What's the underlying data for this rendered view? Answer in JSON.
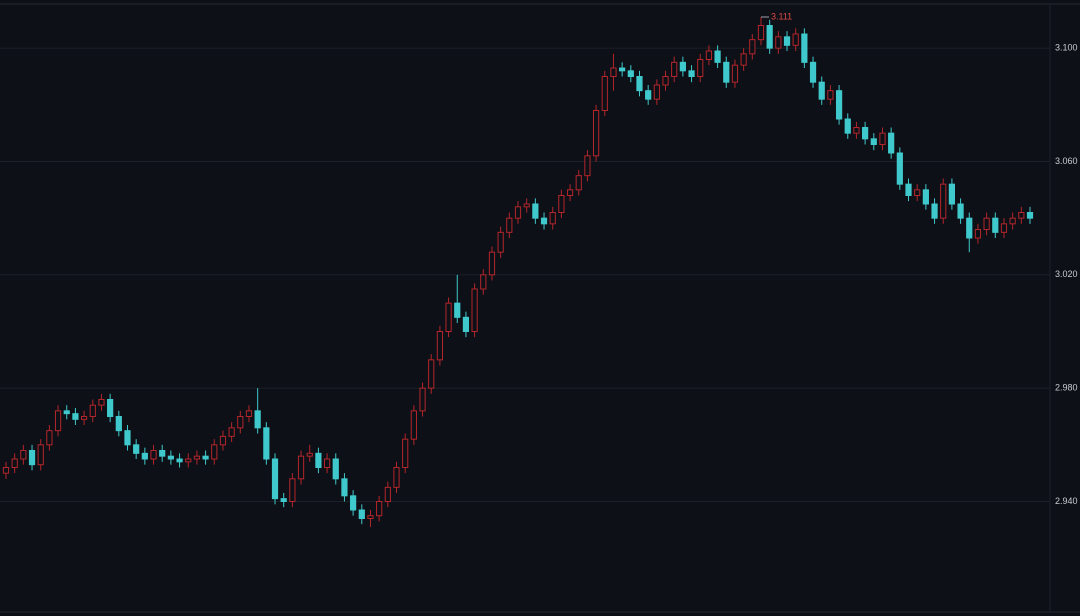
{
  "chart_data": {
    "type": "candlestick",
    "open": [
      2.95,
      2.952,
      2.955,
      2.958,
      2.953,
      2.96,
      2.965,
      2.972,
      2.971,
      2.969,
      2.97,
      2.974,
      2.976,
      2.97,
      2.965,
      2.96,
      2.957,
      2.955,
      2.958,
      2.956,
      2.955,
      2.954,
      2.955,
      2.956,
      2.955,
      2.96,
      2.963,
      2.966,
      2.97,
      2.972,
      2.966,
      2.955,
      2.941,
      2.94,
      2.948,
      2.956,
      2.957,
      2.952,
      2.955,
      2.948,
      2.942,
      2.937,
      2.934,
      2.935,
      2.94,
      2.945,
      2.952,
      2.962,
      2.972,
      2.98,
      2.99,
      3.0,
      3.01,
      3.005,
      3.0,
      3.015,
      3.02,
      3.028,
      3.035,
      3.04,
      3.044,
      3.045,
      3.04,
      3.038,
      3.042,
      3.048,
      3.05,
      3.055,
      3.062,
      3.078,
      3.09,
      3.093,
      3.092,
      3.09,
      3.085,
      3.082,
      3.087,
      3.09,
      3.095,
      3.092,
      3.09,
      3.096,
      3.099,
      3.095,
      3.088,
      3.094,
      3.098,
      3.103,
      3.108,
      3.1,
      3.104,
      3.101,
      3.105,
      3.095,
      3.088,
      3.082,
      3.085,
      3.075,
      3.07,
      3.072,
      3.068,
      3.066,
      3.07,
      3.063,
      3.052,
      3.048,
      3.05,
      3.045,
      3.04,
      3.052,
      3.045,
      3.04,
      3.033,
      3.036,
      3.04,
      3.035,
      3.038,
      3.04,
      3.042
    ],
    "high": [
      2.954,
      2.957,
      2.96,
      2.96,
      2.962,
      2.967,
      2.974,
      2.974,
      2.973,
      2.972,
      2.976,
      2.978,
      2.978,
      2.972,
      2.967,
      2.962,
      2.959,
      2.96,
      2.96,
      2.958,
      2.957,
      2.957,
      2.958,
      2.958,
      2.962,
      2.965,
      2.968,
      2.972,
      2.974,
      2.98,
      2.968,
      2.957,
      2.943,
      2.95,
      2.958,
      2.96,
      2.959,
      2.957,
      2.957,
      2.95,
      2.944,
      2.939,
      2.937,
      2.942,
      2.947,
      2.954,
      2.964,
      2.974,
      2.982,
      2.992,
      3.002,
      3.012,
      3.02,
      3.007,
      3.017,
      3.022,
      3.03,
      3.037,
      3.042,
      3.046,
      3.047,
      3.047,
      3.042,
      3.044,
      3.05,
      3.052,
      3.057,
      3.064,
      3.08,
      3.092,
      3.098,
      3.095,
      3.094,
      3.092,
      3.087,
      3.089,
      3.092,
      3.097,
      3.097,
      3.094,
      3.098,
      3.101,
      3.101,
      3.097,
      3.096,
      3.1,
      3.105,
      3.111,
      3.11,
      3.106,
      3.106,
      3.107,
      3.107,
      3.097,
      3.09,
      3.087,
      3.087,
      3.077,
      3.074,
      3.074,
      3.07,
      3.072,
      3.072,
      3.065,
      3.054,
      3.052,
      3.052,
      3.047,
      3.054,
      3.054,
      3.047,
      3.042,
      3.038,
      3.042,
      3.042,
      3.04,
      3.042,
      3.044,
      3.044
    ],
    "low": [
      2.948,
      2.95,
      2.953,
      2.951,
      2.951,
      2.958,
      2.963,
      2.969,
      2.967,
      2.967,
      2.968,
      2.972,
      2.968,
      2.963,
      2.958,
      2.955,
      2.953,
      2.953,
      2.954,
      2.953,
      2.952,
      2.952,
      2.953,
      2.953,
      2.953,
      2.958,
      2.961,
      2.964,
      2.968,
      2.964,
      2.953,
      2.939,
      2.938,
      2.938,
      2.946,
      2.954,
      2.95,
      2.95,
      2.946,
      2.94,
      2.935,
      2.932,
      2.931,
      2.933,
      2.938,
      2.943,
      2.95,
      2.96,
      2.97,
      2.978,
      2.988,
      2.998,
      3.003,
      2.998,
      2.998,
      3.013,
      3.018,
      3.026,
      3.033,
      3.038,
      3.042,
      3.038,
      3.036,
      3.036,
      3.04,
      3.046,
      3.048,
      3.053,
      3.06,
      3.076,
      3.085,
      3.09,
      3.088,
      3.083,
      3.08,
      3.08,
      3.085,
      3.088,
      3.09,
      3.088,
      3.088,
      3.094,
      3.093,
      3.086,
      3.086,
      3.092,
      3.096,
      3.101,
      3.098,
      3.098,
      3.099,
      3.099,
      3.093,
      3.086,
      3.08,
      3.08,
      3.073,
      3.068,
      3.068,
      3.066,
      3.064,
      3.064,
      3.061,
      3.05,
      3.046,
      3.046,
      3.043,
      3.038,
      3.038,
      3.043,
      3.038,
      3.028,
      3.031,
      3.034,
      3.033,
      3.033,
      3.036,
      3.038,
      3.038
    ],
    "close": [
      2.952,
      2.955,
      2.958,
      2.953,
      2.96,
      2.965,
      2.972,
      2.971,
      2.969,
      2.97,
      2.974,
      2.976,
      2.97,
      2.965,
      2.96,
      2.957,
      2.955,
      2.958,
      2.956,
      2.955,
      2.954,
      2.955,
      2.956,
      2.955,
      2.96,
      2.963,
      2.966,
      2.97,
      2.972,
      2.966,
      2.955,
      2.941,
      2.94,
      2.948,
      2.956,
      2.957,
      2.952,
      2.955,
      2.948,
      2.942,
      2.937,
      2.934,
      2.935,
      2.94,
      2.945,
      2.952,
      2.962,
      2.972,
      2.98,
      2.99,
      3.0,
      3.01,
      3.005,
      3.0,
      3.015,
      3.02,
      3.028,
      3.035,
      3.04,
      3.044,
      3.045,
      3.04,
      3.038,
      3.042,
      3.048,
      3.05,
      3.055,
      3.062,
      3.078,
      3.09,
      3.093,
      3.092,
      3.09,
      3.085,
      3.082,
      3.087,
      3.09,
      3.095,
      3.092,
      3.09,
      3.096,
      3.099,
      3.095,
      3.088,
      3.094,
      3.098,
      3.103,
      3.108,
      3.1,
      3.104,
      3.101,
      3.105,
      3.095,
      3.088,
      3.082,
      3.085,
      3.075,
      3.07,
      3.072,
      3.068,
      3.066,
      3.07,
      3.063,
      3.052,
      3.048,
      3.05,
      3.045,
      3.04,
      3.052,
      3.045,
      3.04,
      3.033,
      3.036,
      3.04,
      3.035,
      3.038,
      3.04,
      3.042,
      3.04
    ],
    "ylim": [
      2.901,
      3.117
    ],
    "yticks": [
      {
        "value": 2.94,
        "label": "2.940"
      },
      {
        "value": 2.98,
        "label": "2.980"
      },
      {
        "value": 3.02,
        "label": "3.020"
      },
      {
        "value": 3.06,
        "label": "3.060"
      },
      {
        "value": 3.1,
        "label": "3.100"
      }
    ],
    "grid": true,
    "up_color": "#b3262c",
    "down_color": "#3fc9cc",
    "max_label": "3.111"
  }
}
